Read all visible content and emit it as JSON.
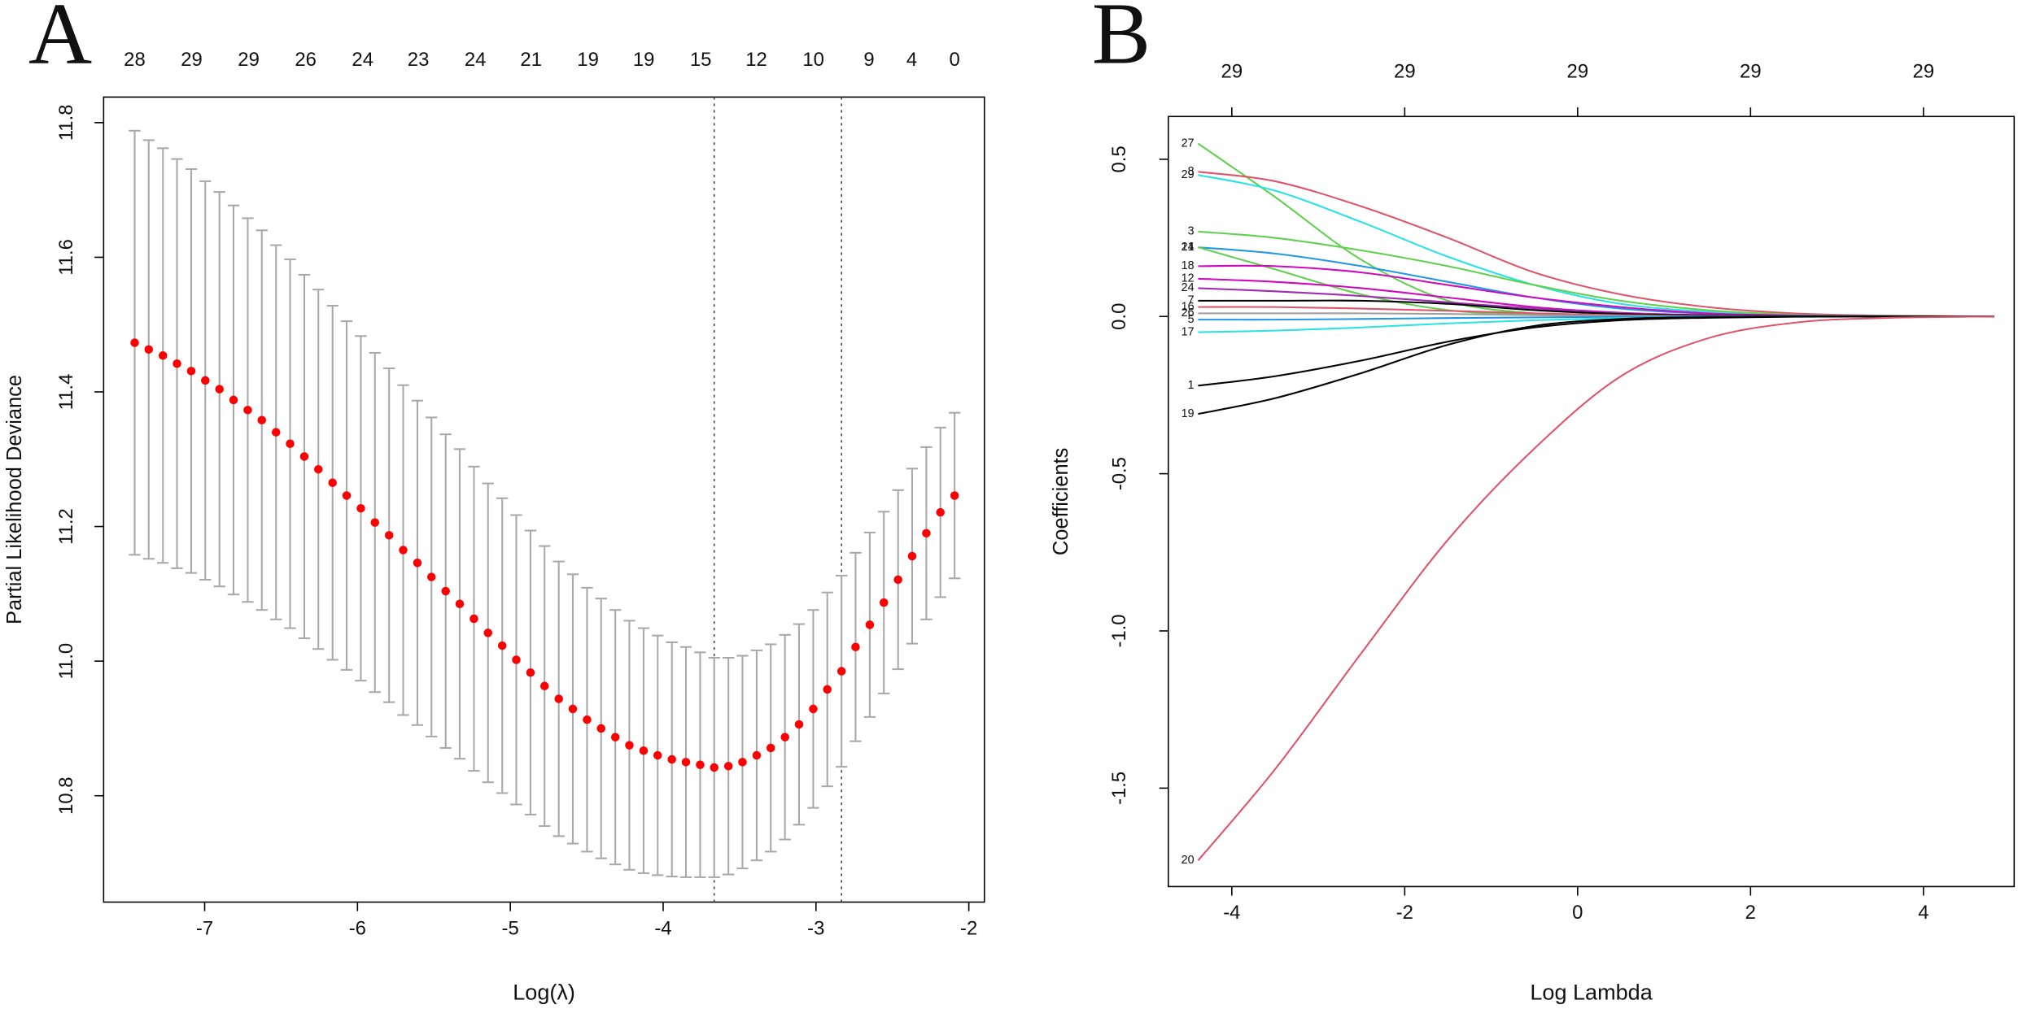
{
  "chart_data": [
    {
      "type": "errorbar",
      "panel_label": "A",
      "xlabel": "Log(λ)",
      "ylabel": "Partial Likelihood Deviance",
      "x": [
        -7.458,
        -7.366,
        -7.273,
        -7.181,
        -7.088,
        -6.996,
        -6.903,
        -6.811,
        -6.718,
        -6.626,
        -6.533,
        -6.441,
        -6.348,
        -6.256,
        -6.163,
        -6.071,
        -5.978,
        -5.886,
        -5.793,
        -5.701,
        -5.608,
        -5.516,
        -5.423,
        -5.331,
        -5.238,
        -5.146,
        -5.053,
        -4.961,
        -4.868,
        -4.776,
        -4.683,
        -4.591,
        -4.498,
        -4.406,
        -4.313,
        -4.221,
        -4.128,
        -4.036,
        -3.943,
        -3.851,
        -3.758,
        -3.666,
        -3.573,
        -3.481,
        -3.388,
        -3.296,
        -3.203,
        -3.111,
        -3.018,
        -2.926,
        -2.833,
        -2.741,
        -2.648,
        -2.556,
        -2.463,
        -2.371,
        -2.278,
        -2.186,
        -2.093
      ],
      "values": [
        11.473,
        11.463,
        11.454,
        11.442,
        11.431,
        11.417,
        11.404,
        11.388,
        11.373,
        11.358,
        11.34,
        11.323,
        11.304,
        11.285,
        11.265,
        11.246,
        11.227,
        11.206,
        11.187,
        11.165,
        11.146,
        11.125,
        11.104,
        11.085,
        11.063,
        11.042,
        11.023,
        11.002,
        10.983,
        10.963,
        10.944,
        10.929,
        10.913,
        10.9,
        10.887,
        10.875,
        10.867,
        10.86,
        10.854,
        10.85,
        10.846,
        10.842,
        10.844,
        10.85,
        10.86,
        10.871,
        10.887,
        10.906,
        10.929,
        10.958,
        10.985,
        11.021,
        11.054,
        11.087,
        11.121,
        11.156,
        11.19,
        11.221,
        11.246
      ],
      "errors": [
        0.315,
        0.311,
        0.308,
        0.304,
        0.3,
        0.296,
        0.293,
        0.289,
        0.285,
        0.282,
        0.278,
        0.274,
        0.27,
        0.267,
        0.263,
        0.259,
        0.256,
        0.252,
        0.248,
        0.245,
        0.241,
        0.237,
        0.233,
        0.23,
        0.226,
        0.222,
        0.219,
        0.215,
        0.211,
        0.208,
        0.204,
        0.2,
        0.196,
        0.193,
        0.189,
        0.185,
        0.182,
        0.178,
        0.174,
        0.171,
        0.167,
        0.163,
        0.161,
        0.158,
        0.156,
        0.154,
        0.152,
        0.149,
        0.147,
        0.144,
        0.142,
        0.14,
        0.137,
        0.135,
        0.133,
        0.13,
        0.128,
        0.126,
        0.123
      ],
      "color": "#ff0000",
      "error_color": "#a9a9a9",
      "xlim": [
        -7.661,
        -1.898
      ],
      "ylim": [
        10.642,
        11.838
      ],
      "xticks": [
        -7,
        -6,
        -5,
        -4,
        -3,
        -2
      ],
      "yticks": [
        10.8,
        {
          "value": 11,
          "label": "11.0"
        },
        11.2,
        11.4,
        11.6,
        11.8
      ],
      "top_ticks": [
        {
          "value": -7.458,
          "label": "28"
        },
        {
          "value": -7.085,
          "label": "29"
        },
        {
          "value": -6.712,
          "label": "29"
        },
        {
          "value": -6.339,
          "label": "26"
        },
        {
          "value": -5.966,
          "label": "24"
        },
        {
          "value": -5.602,
          "label": "23"
        },
        {
          "value": -5.229,
          "label": "24"
        },
        {
          "value": -4.864,
          "label": "21"
        },
        {
          "value": -4.492,
          "label": "19"
        },
        {
          "value": -4.127,
          "label": "19"
        },
        {
          "value": -3.754,
          "label": "15"
        },
        {
          "value": -3.39,
          "label": "12"
        },
        {
          "value": -3.017,
          "label": "10"
        },
        {
          "value": -2.653,
          "label": "9"
        },
        {
          "value": -2.373,
          "label": "4"
        },
        {
          "value": -2.093,
          "label": "0"
        }
      ],
      "vlines": [
        -3.666,
        -2.833
      ]
    },
    {
      "type": "line",
      "panel_label": "B",
      "xlabel": "Log Lambda",
      "ylabel": "Coefficients",
      "x": [
        -4.39,
        -3.5,
        -2.5,
        -1.5,
        -0.5,
        0.5,
        1.5,
        2.5,
        3.5,
        4.82
      ],
      "series": [
        {
          "name": "27",
          "color": "#61d04f",
          "values": [
            0.55,
            0.38,
            0.18,
            0.05,
            0.01,
            0.003,
            0.001,
            0,
            0,
            0
          ]
        },
        {
          "name": "8",
          "color": "#df536b",
          "values": [
            0.46,
            0.43,
            0.35,
            0.25,
            0.14,
            0.07,
            0.03,
            0.01,
            0.003,
            0
          ]
        },
        {
          "name": "29",
          "color": "#28e2e5",
          "values": [
            0.45,
            0.4,
            0.3,
            0.19,
            0.1,
            0.04,
            0.015,
            0.005,
            0.001,
            0
          ]
        },
        {
          "name": "3",
          "color": "#61d04f",
          "values": [
            0.27,
            0.25,
            0.21,
            0.16,
            0.1,
            0.05,
            0.02,
            0.006,
            0.002,
            0
          ]
        },
        {
          "name": "21",
          "color": "#2297e6",
          "values": [
            0.22,
            0.2,
            0.16,
            0.11,
            0.06,
            0.025,
            0.009,
            0.003,
            0.001,
            0
          ]
        },
        {
          "name": "14",
          "color": "#61d04f",
          "values": [
            0.22,
            0.15,
            0.07,
            0.02,
            0.005,
            0.001,
            0,
            0,
            0,
            0
          ]
        },
        {
          "name": "18",
          "color": "#cd0bbc",
          "values": [
            0.16,
            0.16,
            0.14,
            0.1,
            0.06,
            0.03,
            0.01,
            0.003,
            0.001,
            0
          ]
        },
        {
          "name": "12",
          "color": "#cd0bbc",
          "values": [
            0.12,
            0.11,
            0.09,
            0.06,
            0.03,
            0.012,
            0.004,
            0.001,
            0,
            0
          ]
        },
        {
          "name": "24",
          "color": "#9e2bb0",
          "values": [
            0.09,
            0.08,
            0.065,
            0.045,
            0.025,
            0.01,
            0.003,
            0.001,
            0,
            0
          ]
        },
        {
          "name": "7",
          "color": "#000000",
          "values": [
            0.05,
            0.05,
            0.05,
            0.04,
            0.02,
            0.008,
            0.003,
            0.001,
            0,
            0
          ]
        },
        {
          "name": "16",
          "color": "#df536b",
          "values": [
            0.03,
            0.03,
            0.025,
            0.018,
            0.01,
            0.004,
            0.001,
            0,
            0,
            0
          ]
        },
        {
          "name": "26",
          "color": "#9e9e9e",
          "values": [
            0.01,
            0.01,
            0.01,
            0.008,
            0.004,
            0.002,
            0,
            0,
            0,
            0
          ]
        },
        {
          "name": "5",
          "color": "#2297e6",
          "values": [
            -0.01,
            -0.01,
            -0.008,
            -0.005,
            -0.003,
            -0.001,
            0,
            0,
            0,
            0
          ]
        },
        {
          "name": "17",
          "color": "#28e2e5",
          "values": [
            -0.05,
            -0.045,
            -0.035,
            -0.022,
            -0.012,
            -0.005,
            -0.002,
            0,
            0,
            0
          ]
        },
        {
          "name": "1",
          "color": "#000000",
          "values": [
            -0.22,
            -0.19,
            -0.14,
            -0.08,
            -0.035,
            -0.012,
            -0.004,
            -0.001,
            0,
            0
          ]
        },
        {
          "name": "19",
          "color": "#000000",
          "values": [
            -0.31,
            -0.26,
            -0.18,
            -0.09,
            -0.03,
            -0.008,
            -0.002,
            0,
            0,
            0
          ]
        },
        {
          "name": "20",
          "color": "#df536b",
          "values": [
            -1.73,
            -1.44,
            -1.07,
            -0.71,
            -0.42,
            -0.19,
            -0.07,
            -0.02,
            -0.005,
            0
          ]
        }
      ],
      "xlim": [
        -4.734,
        5.049
      ],
      "ylim": [
        -1.813,
        0.636
      ],
      "xticks": [
        -4,
        -2,
        0,
        2,
        4
      ],
      "yticks": [
        -1.5,
        {
          "value": -1,
          "label": "-1.0"
        },
        -0.5,
        {
          "value": 0,
          "label": "0.0"
        },
        0.5
      ],
      "top_ticks": [
        {
          "value": -4,
          "label": "29"
        },
        {
          "value": -2,
          "label": "29"
        },
        {
          "value": 0,
          "label": "29"
        },
        {
          "value": 2,
          "label": "29"
        },
        {
          "value": 4,
          "label": "29"
        }
      ]
    }
  ]
}
